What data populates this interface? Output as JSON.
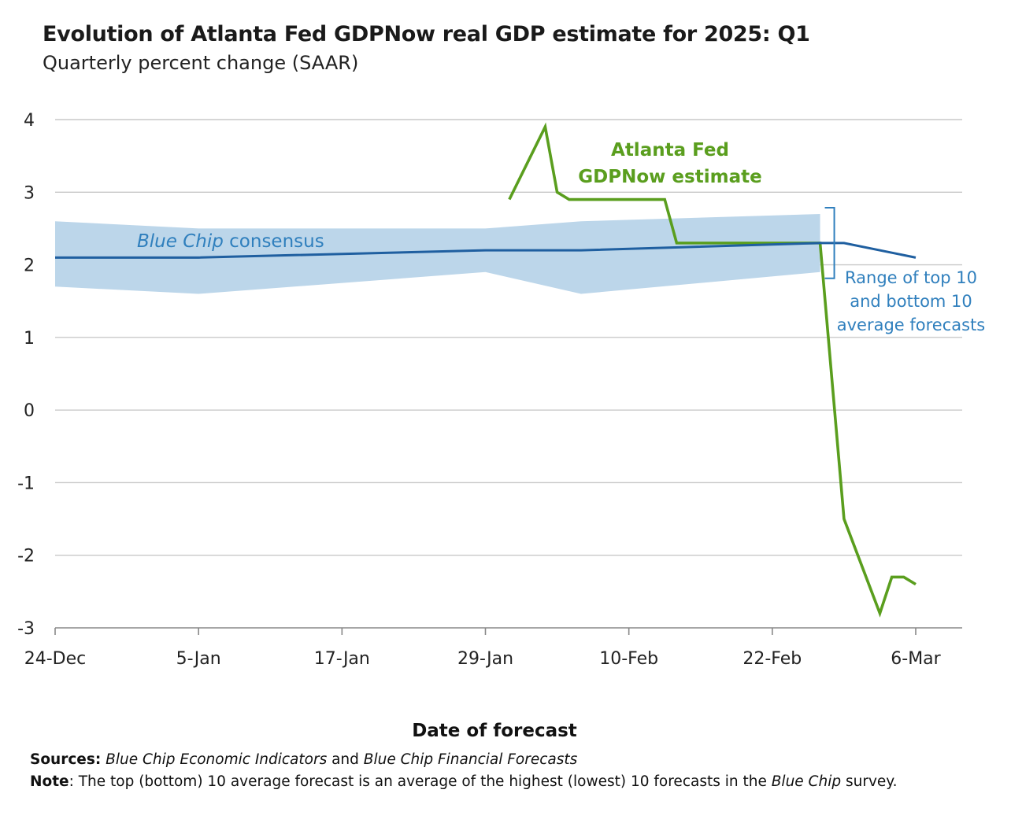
{
  "header": {
    "title": "Evolution of Atlanta Fed GDPNow real GDP estimate for 2025: Q1",
    "subtitle": "Quarterly percent change (SAAR)"
  },
  "chart_data": {
    "type": "line",
    "title": "Evolution of Atlanta Fed GDPNow real GDP estimate for 2025: Q1",
    "subtitle": "Quarterly percent change (SAAR)",
    "xlabel": "Date of forecast",
    "ylabel": "",
    "x_ticks": [
      "24-Dec",
      "5-Jan",
      "17-Jan",
      "29-Jan",
      "10-Feb",
      "22-Feb",
      "6-Mar"
    ],
    "y_ticks": [
      "4",
      "3",
      "2",
      "1",
      "0",
      "-1",
      "-2",
      "-3"
    ],
    "ylim": [
      -3,
      4
    ],
    "xlim": [
      "2024-12-24",
      "2025-03-06"
    ],
    "grid": true,
    "series": [
      {
        "name": "Atlanta Fed GDPNow estimate",
        "label_lines": [
          "Atlanta Fed",
          "GDPNow estimate"
        ],
        "color": "#5a9e1e",
        "points": [
          [
            "2025-01-31",
            2.9
          ],
          [
            "2025-02-03",
            3.9
          ],
          [
            "2025-02-04",
            3.0
          ],
          [
            "2025-02-05",
            2.9
          ],
          [
            "2025-02-13",
            2.9
          ],
          [
            "2025-02-14",
            2.3
          ],
          [
            "2025-02-26",
            2.3
          ],
          [
            "2025-02-28",
            -1.5
          ],
          [
            "2025-03-03",
            -2.8
          ],
          [
            "2025-03-04",
            -2.3
          ],
          [
            "2025-03-05",
            -2.3
          ],
          [
            "2025-03-06",
            -2.4
          ]
        ]
      },
      {
        "name": "Blue Chip consensus",
        "label_italic": "Blue Chip",
        "label_rest": " consensus",
        "color": "#1f5fa0",
        "points": [
          [
            "2024-12-24",
            2.1
          ],
          [
            "2025-01-05",
            2.1
          ],
          [
            "2025-01-29",
            2.2
          ],
          [
            "2025-02-06",
            2.2
          ],
          [
            "2025-02-26",
            2.3
          ],
          [
            "2025-02-28",
            2.3
          ],
          [
            "2025-03-06",
            2.1
          ]
        ]
      }
    ],
    "range_band": {
      "name": "Range of top 10 and bottom 10 average forecasts",
      "label_lines": [
        "Range of top 10",
        "and bottom 10",
        "average forecasts"
      ],
      "color": "#bcd6ea",
      "label_color": "#2f7fbd",
      "upper": [
        [
          "2024-12-24",
          2.6
        ],
        [
          "2025-01-05",
          2.5
        ],
        [
          "2025-01-29",
          2.5
        ],
        [
          "2025-02-06",
          2.6
        ],
        [
          "2025-02-26",
          2.7
        ]
      ],
      "lower": [
        [
          "2024-12-24",
          1.7
        ],
        [
          "2025-01-05",
          1.6
        ],
        [
          "2025-01-29",
          1.9
        ],
        [
          "2025-02-06",
          1.6
        ],
        [
          "2025-02-26",
          1.9
        ]
      ]
    },
    "colors": {
      "grid": "#c8c8c8",
      "axis": "#888888",
      "text": "#222222"
    }
  },
  "footer": {
    "sources_label": "Sources:",
    "sources_italic_1": "Blue Chip Economic Indicators",
    "sources_and": " and ",
    "sources_italic_2": "Blue Chip Financial Forecasts",
    "note_label": "Note",
    "note_text_1": ": The top (bottom) 10 average forecast is an average of the highest (lowest) 10 forecasts in the ",
    "note_italic": "Blue Chip",
    "note_text_2": " survey."
  }
}
